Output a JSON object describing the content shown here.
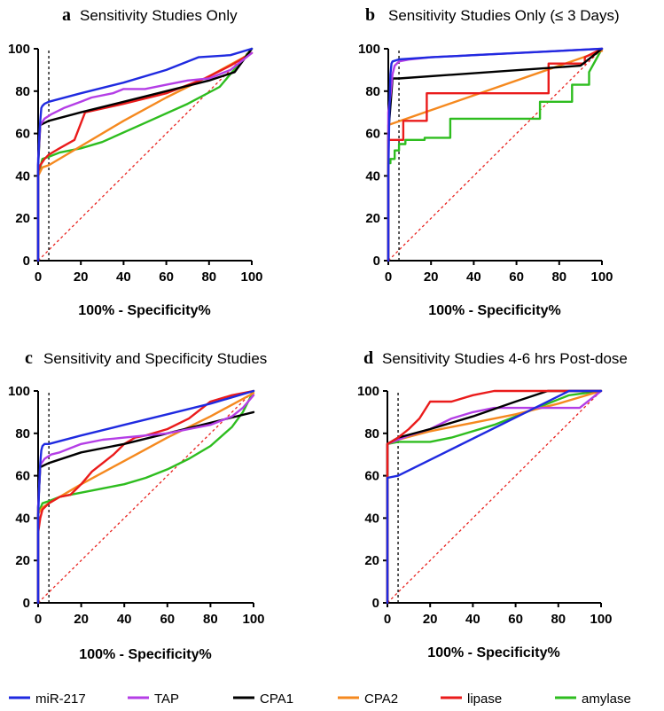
{
  "legend": [
    {
      "name": "miR-217",
      "color": "#1f2ae0"
    },
    {
      "name": "TAP",
      "color": "#b43ee6"
    },
    {
      "name": "CPA1",
      "color": "#000000"
    },
    {
      "name": "CPA2",
      "color": "#f5891f"
    },
    {
      "name": "lipase",
      "color": "#ea1b1b"
    },
    {
      "name": "amylase",
      "color": "#2ebd1f"
    }
  ],
  "chart_data": [
    {
      "type": "line",
      "letter": "a",
      "title": "Sensitivity Studies Only",
      "xlabel": "100% - Specificity%",
      "ylabel": "",
      "xlim": [
        0,
        100
      ],
      "ylim": [
        0,
        100
      ],
      "xticks": [
        0,
        20,
        40,
        60,
        80,
        100
      ],
      "yticks": [
        0,
        20,
        40,
        60,
        80,
        100
      ],
      "cutoff_x": 5,
      "series": [
        {
          "name": "amylase",
          "color": "#2ebd1f",
          "x": [
            0,
            0,
            2,
            5,
            10,
            20,
            30,
            50,
            70,
            85,
            100
          ],
          "y": [
            0,
            40,
            48,
            49,
            51,
            53,
            56,
            65,
            74,
            82,
            100
          ]
        },
        {
          "name": "CPA2",
          "color": "#f5891f",
          "x": [
            0,
            0,
            2,
            5,
            20,
            40,
            60,
            80,
            100
          ],
          "y": [
            0,
            40,
            44,
            45,
            54,
            66,
            77,
            87,
            98
          ]
        },
        {
          "name": "lipase",
          "color": "#ea1b1b",
          "x": [
            0,
            0,
            1,
            3,
            5,
            10,
            17,
            22,
            40,
            60,
            78,
            90,
            100
          ],
          "y": [
            0,
            42,
            45,
            48,
            50,
            53,
            57,
            70,
            74,
            79,
            86,
            92,
            98
          ]
        },
        {
          "name": "CPA1",
          "color": "#000000",
          "x": [
            0,
            0,
            1,
            3,
            5,
            20,
            40,
            60,
            80,
            92,
            100
          ],
          "y": [
            0,
            45,
            64,
            65,
            66,
            70,
            75,
            80,
            85,
            89,
            100
          ]
        },
        {
          "name": "TAP",
          "color": "#b43ee6",
          "x": [
            0,
            0,
            1,
            3,
            6,
            8,
            12,
            20,
            25,
            35,
            40,
            50,
            60,
            70,
            80,
            90,
            100
          ],
          "y": [
            0,
            48,
            64,
            67,
            69,
            70,
            72,
            75,
            77,
            79,
            81,
            81,
            83,
            85,
            86,
            90,
            98
          ]
        },
        {
          "name": "miR-217",
          "color": "#1f2ae0",
          "x": [
            0,
            0,
            0.5,
            1,
            1.5,
            2,
            3,
            5,
            20,
            40,
            60,
            75,
            90,
            100
          ],
          "y": [
            0,
            45,
            58,
            66,
            72,
            73,
            74,
            75,
            79,
            84,
            90,
            96,
            97,
            100
          ]
        }
      ]
    },
    {
      "type": "line",
      "letter": "b",
      "title": "Sensitivity Studies Only (≤ 3 Days)",
      "xlabel": "100% - Specificity%",
      "ylabel": "",
      "xlim": [
        0,
        100
      ],
      "ylim": [
        0,
        100
      ],
      "xticks": [
        0,
        20,
        40,
        60,
        80,
        100
      ],
      "yticks": [
        0,
        20,
        40,
        60,
        80,
        100
      ],
      "cutoff_x": 5,
      "series": [
        {
          "name": "amylase",
          "color": "#2ebd1f",
          "x": [
            0,
            0,
            1,
            1,
            3,
            3,
            5,
            5,
            8,
            8,
            17,
            17,
            29,
            29,
            71,
            71,
            76,
            76,
            86,
            86,
            94,
            94,
            100
          ],
          "y": [
            0,
            46,
            46,
            48,
            48,
            52,
            52,
            55,
            55,
            57,
            57,
            58,
            58,
            67,
            67,
            75,
            75,
            75,
            75,
            83,
            83,
            89,
            100
          ]
        },
        {
          "name": "CPA2",
          "color": "#f5891f",
          "x": [
            0,
            0,
            100
          ],
          "y": [
            0,
            64,
            99
          ]
        },
        {
          "name": "lipase",
          "color": "#ea1b1b",
          "x": [
            0,
            0,
            7,
            7,
            13,
            13,
            18,
            18,
            75,
            75,
            92,
            92,
            100
          ],
          "y": [
            0,
            57,
            57,
            66,
            66,
            66,
            66,
            79,
            79,
            93,
            93,
            96,
            100
          ]
        },
        {
          "name": "CPA1",
          "color": "#000000",
          "x": [
            0,
            0,
            2,
            5,
            90,
            100
          ],
          "y": [
            0,
            60,
            86,
            86,
            92,
            100
          ]
        },
        {
          "name": "TAP",
          "color": "#b43ee6",
          "x": [
            0,
            0,
            1,
            2,
            3,
            5,
            10,
            20,
            40,
            60,
            80,
            100
          ],
          "y": [
            0,
            70,
            78,
            88,
            92,
            94,
            95,
            96,
            97,
            98,
            99,
            100
          ]
        },
        {
          "name": "miR-217",
          "color": "#1f2ae0",
          "x": [
            0,
            0,
            0.5,
            1,
            1.5,
            2,
            5,
            20,
            40,
            60,
            80,
            100
          ],
          "y": [
            0,
            40,
            70,
            88,
            93,
            94,
            95,
            96,
            97,
            98,
            99,
            100
          ]
        }
      ]
    },
    {
      "type": "line",
      "letter": "c",
      "title": "Sensitivity and Specificity Studies",
      "xlabel": "100% - Specificity%",
      "ylabel": "",
      "xlim": [
        0,
        100
      ],
      "ylim": [
        0,
        100
      ],
      "xticks": [
        0,
        20,
        40,
        60,
        80,
        100
      ],
      "yticks": [
        0,
        20,
        40,
        60,
        80,
        100
      ],
      "cutoff_x": 5,
      "series": [
        {
          "name": "amylase",
          "color": "#2ebd1f",
          "x": [
            0,
            0,
            2,
            5,
            10,
            15,
            20,
            25,
            30,
            40,
            50,
            60,
            70,
            80,
            90,
            95,
            100
          ],
          "y": [
            0,
            42,
            47,
            48,
            50,
            51,
            52,
            53,
            54,
            56,
            59,
            63,
            68,
            74,
            83,
            90,
            100
          ]
        },
        {
          "name": "CPA2",
          "color": "#f5891f",
          "x": [
            0,
            0,
            2,
            5,
            20,
            40,
            60,
            80,
            100
          ],
          "y": [
            0,
            42,
            45,
            47,
            56,
            67,
            78,
            88,
            99
          ]
        },
        {
          "name": "lipase",
          "color": "#ea1b1b",
          "x": [
            0,
            0,
            1,
            2,
            5,
            10,
            15,
            20,
            25,
            30,
            35,
            40,
            45,
            50,
            60,
            70,
            80,
            90,
            100
          ],
          "y": [
            0,
            33,
            40,
            44,
            47,
            50,
            51,
            56,
            62,
            66,
            70,
            75,
            78,
            79,
            82,
            87,
            95,
            98,
            100
          ]
        },
        {
          "name": "CPA1",
          "color": "#000000",
          "x": [
            0,
            0,
            1,
            3,
            5,
            20,
            40,
            60,
            80,
            100
          ],
          "y": [
            0,
            45,
            64,
            65,
            66,
            71,
            75,
            80,
            85,
            90
          ]
        },
        {
          "name": "TAP",
          "color": "#b43ee6",
          "x": [
            0,
            0,
            1,
            3,
            6,
            10,
            15,
            20,
            30,
            40,
            50,
            60,
            70,
            80,
            90,
            95,
            100
          ],
          "y": [
            0,
            45,
            65,
            68,
            70,
            71,
            73,
            75,
            77,
            78,
            79,
            80,
            82,
            84,
            88,
            92,
            98
          ]
        },
        {
          "name": "miR-217",
          "color": "#1f2ae0",
          "x": [
            0,
            0,
            0.5,
            1,
            1.5,
            2,
            3,
            5,
            20,
            40,
            60,
            80,
            90,
            100
          ],
          "y": [
            0,
            40,
            55,
            66,
            72,
            74,
            75,
            75,
            79,
            84,
            89,
            94,
            97,
            100
          ]
        }
      ]
    },
    {
      "type": "line",
      "letter": "d",
      "title": "Sensitivity Studies 4-6 hrs Post-dose",
      "xlabel": "100% - Specificity%",
      "ylabel": "",
      "xlim": [
        0,
        100
      ],
      "ylim": [
        0,
        100
      ],
      "xticks": [
        0,
        20,
        40,
        60,
        80,
        100
      ],
      "yticks": [
        0,
        20,
        40,
        60,
        80,
        100
      ],
      "cutoff_x": 5,
      "series": [
        {
          "name": "amylase",
          "color": "#2ebd1f",
          "x": [
            0,
            0,
            5,
            20,
            30,
            50,
            70,
            85,
            100
          ],
          "y": [
            0,
            75,
            76,
            76,
            78,
            84,
            92,
            98,
            100
          ]
        },
        {
          "name": "CPA2",
          "color": "#f5891f",
          "x": [
            0,
            0,
            5,
            20,
            40,
            60,
            80,
            100
          ],
          "y": [
            0,
            75,
            77,
            81,
            85,
            89,
            94,
            100
          ]
        },
        {
          "name": "TAP",
          "color": "#b43ee6",
          "x": [
            0,
            0,
            5,
            10,
            20,
            30,
            40,
            50,
            60,
            70,
            80,
            90,
            100
          ],
          "y": [
            0,
            75,
            77,
            79,
            82,
            87,
            90,
            92,
            92,
            92,
            92,
            92,
            100
          ]
        },
        {
          "name": "CPA1",
          "color": "#000000",
          "x": [
            0,
            0,
            5,
            20,
            40,
            60,
            75,
            100
          ],
          "y": [
            0,
            75,
            78,
            82,
            88,
            95,
            100,
            100
          ]
        },
        {
          "name": "lipase",
          "color": "#ea1b1b",
          "x": [
            0,
            0,
            5,
            10,
            15,
            20,
            25,
            30,
            40,
            50,
            60,
            100
          ],
          "y": [
            0,
            75,
            78,
            82,
            87,
            95,
            95,
            95,
            98,
            100,
            100,
            100
          ]
        },
        {
          "name": "miR-217",
          "color": "#1f2ae0",
          "x": [
            0,
            0,
            5,
            85,
            100
          ],
          "y": [
            0,
            59,
            60,
            100,
            100
          ]
        }
      ]
    }
  ]
}
